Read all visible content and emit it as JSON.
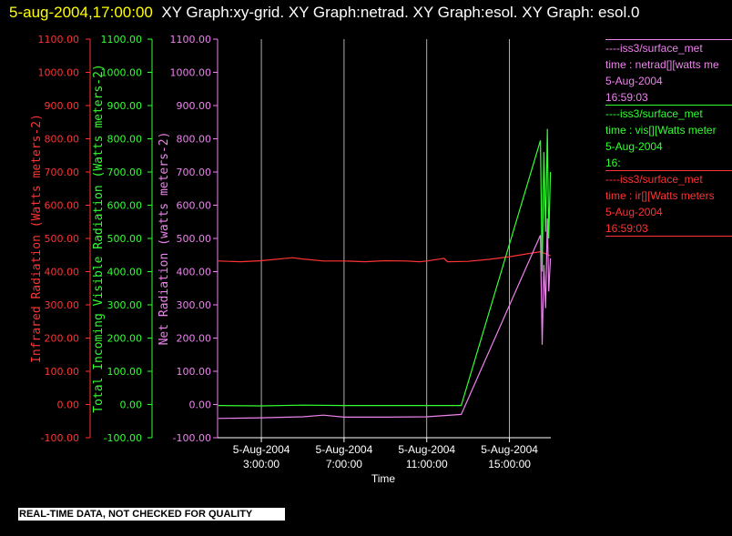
{
  "title": {
    "timestamp": "5-aug-2004,17:00:00",
    "text": "XY Graph:xy-grid.  XY Graph:netrad.  XY Graph:esol.  XY Graph: esol.0"
  },
  "colors": {
    "ir": "#ff3333",
    "vis": "#33ff33",
    "net": "#ee82ee",
    "grid": "#ffffff",
    "background": "#000000"
  },
  "legend": [
    {
      "source": "----iss3/surface_met",
      "line": "time : netrad[][watts me",
      "date": "5-Aug-2004",
      "time": "16:59:03",
      "color": "#ee82ee"
    },
    {
      "source": "----iss3/surface_met",
      "line": "time : vis[][Watts meter",
      "date": "5-Aug-2004",
      "time": "16:",
      "color": "#33ff33"
    },
    {
      "source": "----iss3/surface_met",
      "line": "time : ir[][Watts meters",
      "date": "5-Aug-2004",
      "time": "16:59:03",
      "color": "#ff3333"
    }
  ],
  "notice": "REAL-TIME DATA, NOT CHECKED FOR QUALITY",
  "chart_data": {
    "type": "line",
    "xlabel": "Time",
    "x_ticks": [
      {
        "t": 3,
        "date": "5-Aug-2004",
        "time": "3:00:00"
      },
      {
        "t": 7,
        "date": "5-Aug-2004",
        "time": "7:00:00"
      },
      {
        "t": 11,
        "date": "5-Aug-2004",
        "time": "11:00:00"
      },
      {
        "t": 15,
        "date": "5-Aug-2004",
        "time": "15:00:00"
      }
    ],
    "xlim": [
      "5-Aug-2004 0:53",
      "5-Aug-2004 17:00"
    ],
    "grid": "vertical lines at x ticks",
    "y_ticks": [
      -100,
      0,
      100,
      200,
      300,
      400,
      500,
      600,
      700,
      800,
      900,
      1000,
      1100
    ],
    "y_tick_labels": [
      "-100.00",
      "0.00",
      "100.00",
      "200.00",
      "300.00",
      "400.00",
      "500.00",
      "600.00",
      "700.00",
      "800.00",
      "900.00",
      "1000.00",
      "1100.00"
    ],
    "ylim": [
      -100,
      1100
    ],
    "axes": [
      {
        "label": "Infrared Radiation (Watts meters-2)",
        "color": "#ff3333"
      },
      {
        "label": "Total Incoming Visible Radiation (Watts meters-2)",
        "color": "#33ff33"
      },
      {
        "label": "Net Radiation (watts meters-2)",
        "color": "#ee82ee"
      }
    ],
    "series": [
      {
        "key": "ir",
        "color": "#ff3333",
        "x": [
          "5-Aug-2004 0:55",
          "5-Aug-2004 2:00",
          "5-Aug-2004 3:00",
          "5-Aug-2004 4:30",
          "5-Aug-2004 5:00",
          "5-Aug-2004 6:00",
          "5-Aug-2004 7:00",
          "5-Aug-2004 8:00",
          "5-Aug-2004 9:00",
          "5-Aug-2004 10:00",
          "5-Aug-2004 10:40",
          "5-Aug-2004 11:00",
          "5-Aug-2004 11:50",
          "5-Aug-2004 12:00",
          "5-Aug-2004 13:00",
          "5-Aug-2004 14:00",
          "5-Aug-2004 15:00",
          "5-Aug-2004 16:00",
          "5-Aug-2004 16:30",
          "5-Aug-2004 16:59"
        ],
        "y": [
          432,
          430,
          433,
          442,
          438,
          432,
          432,
          430,
          433,
          432,
          430,
          432,
          440,
          430,
          431,
          437,
          445,
          455,
          460,
          448
        ]
      },
      {
        "key": "vis",
        "color": "#33ff33",
        "x": [
          "5-Aug-2004 0:55",
          "5-Aug-2004 3:00",
          "5-Aug-2004 5:00",
          "5-Aug-2004 7:00",
          "5-Aug-2004 9:00",
          "5-Aug-2004 11:00",
          "5-Aug-2004 12:40",
          "5-Aug-2004 16:30",
          "5-Aug-2004 16:35",
          "5-Aug-2004 16:40",
          "5-Aug-2004 16:45",
          "5-Aug-2004 16:50",
          "5-Aug-2004 16:54",
          "5-Aug-2004 16:59"
        ],
        "y": [
          -3,
          -4,
          -2,
          -3,
          -3,
          -3,
          -3,
          795,
          400,
          760,
          520,
          830,
          500,
          700
        ]
      },
      {
        "key": "net",
        "color": "#ee82ee",
        "x": [
          "5-Aug-2004 0:55",
          "5-Aug-2004 3:00",
          "5-Aug-2004 5:00",
          "5-Aug-2004 6:00",
          "5-Aug-2004 7:00",
          "5-Aug-2004 9:00",
          "5-Aug-2004 11:00",
          "5-Aug-2004 12:40",
          "5-Aug-2004 16:30",
          "5-Aug-2004 16:35",
          "5-Aug-2004 16:40",
          "5-Aug-2004 16:45",
          "5-Aug-2004 16:50",
          "5-Aug-2004 16:54",
          "5-Aug-2004 16:59"
        ],
        "y": [
          -42,
          -40,
          -37,
          -32,
          -38,
          -38,
          -37,
          -30,
          510,
          180,
          420,
          290,
          560,
          340,
          440
        ]
      }
    ]
  }
}
